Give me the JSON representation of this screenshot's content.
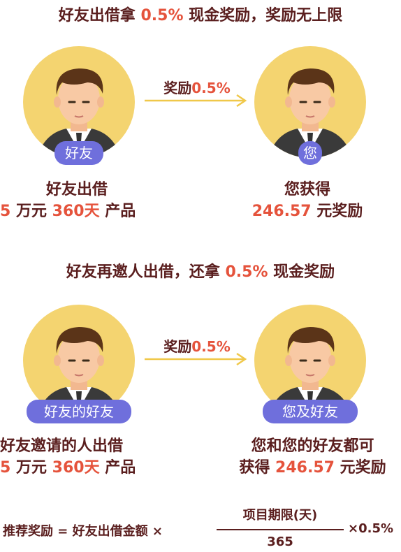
{
  "colors": {
    "text": "#5a1e1e",
    "highlight": "#e5533c",
    "badge": "#6f6fdc",
    "avatar_bg": "#f4d470",
    "arrow": "#f0c84a"
  },
  "section1": {
    "heading_pre": "好友出借拿",
    "heading_rate": "0.5%",
    "heading_post": "现金奖励，奖励无上限",
    "left_badge": "好友",
    "right_badge": "您",
    "arrow_text": "奖励",
    "arrow_rate": "0.5%",
    "left_line1": "好友出借",
    "left_amount": "5",
    "left_unit": "万元",
    "left_days": "360天",
    "left_suffix": "产品",
    "right_line1": "您获得",
    "right_amount": "246.57",
    "right_suffix": "元奖励"
  },
  "section2": {
    "heading_pre": "好友再邀人出借，还拿",
    "heading_rate": "0.5%",
    "heading_post": "现金奖励",
    "left_badge": "好友的好友",
    "right_badge": "您及好友",
    "arrow_text": "奖励",
    "arrow_rate": "0.5%",
    "left_line1": "好友邀请的人出借",
    "left_amount": "5",
    "left_unit": "万元",
    "left_days": "360天",
    "left_suffix": "产品",
    "right_line1": "您和您的好友都可",
    "right_pre": "获得",
    "right_amount": "246.57",
    "right_suffix": "元奖励"
  },
  "formula": {
    "lhs": "推荐奖励 = 好友出借金额 ×",
    "numerator": "项目期限(天)",
    "denominator": "365",
    "rhs": "×0.5%"
  }
}
